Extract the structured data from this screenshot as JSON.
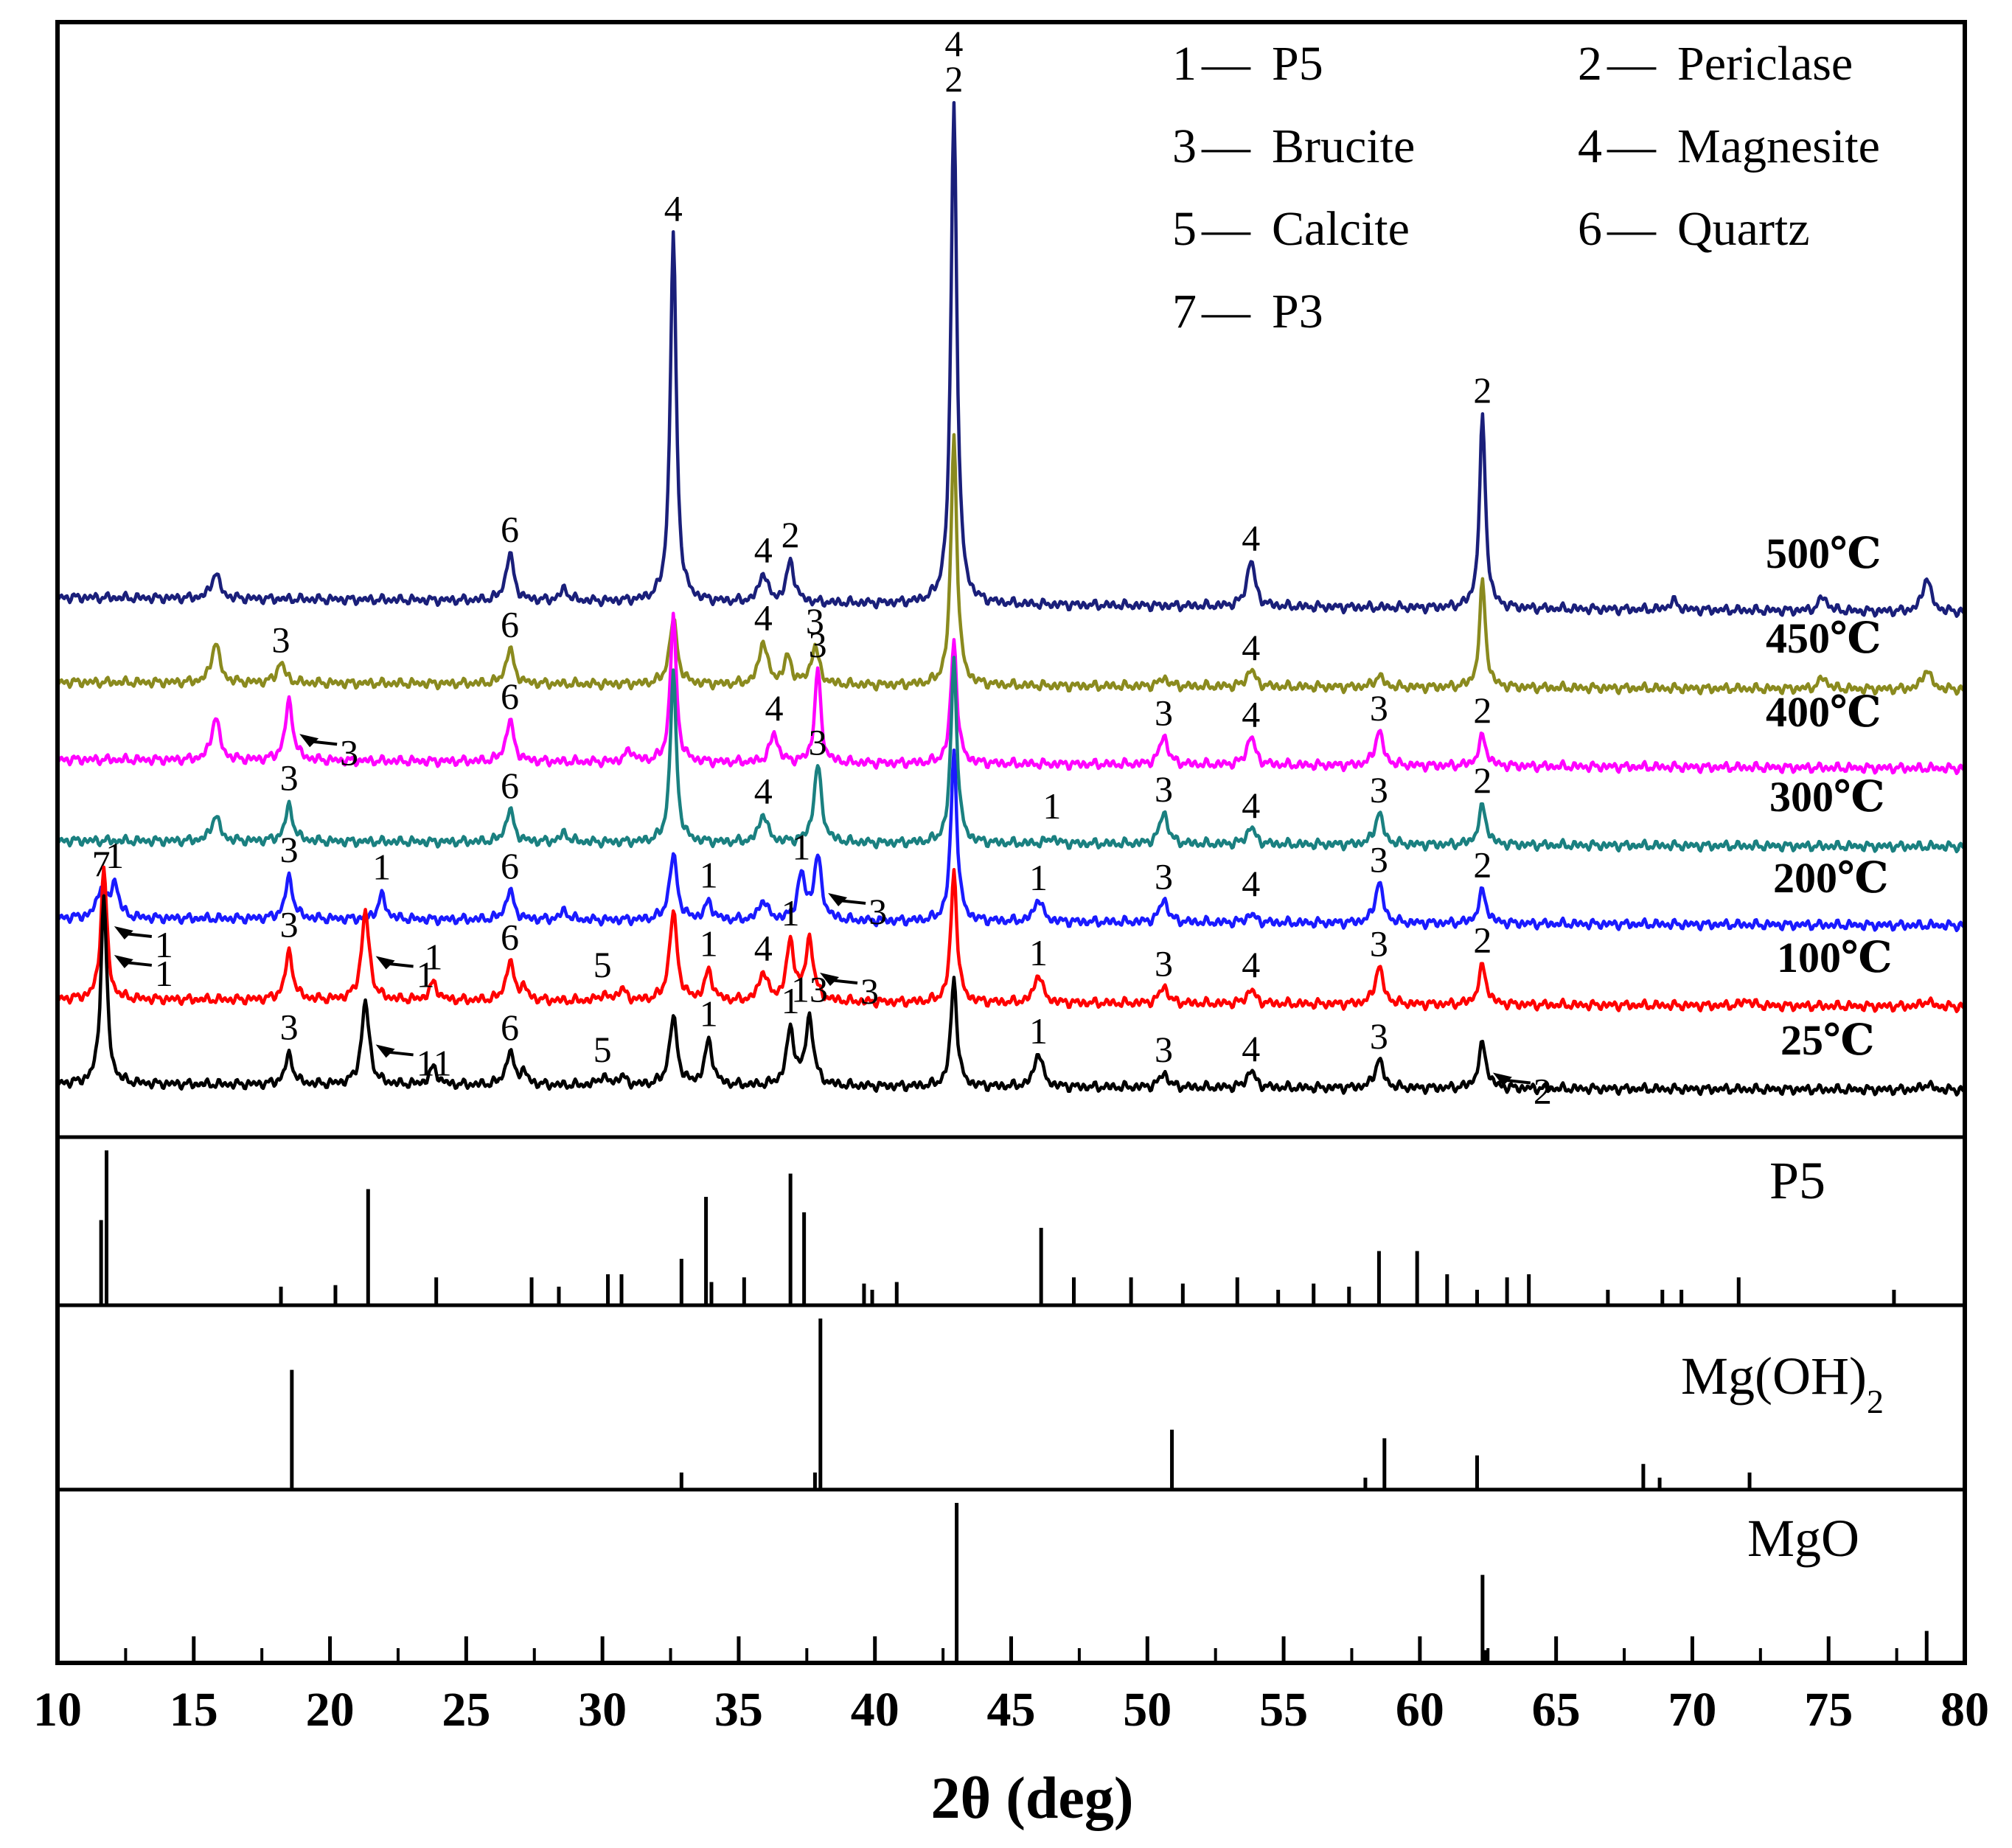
{
  "chart_data": {
    "type": "line",
    "title": "",
    "xlabel": "2θ (deg)",
    "ylabel": "",
    "xlim": [
      10,
      80
    ],
    "xticks": [
      10,
      15,
      20,
      25,
      30,
      35,
      40,
      45,
      50,
      55,
      60,
      65,
      70,
      75,
      80
    ],
    "grid": false,
    "legend": [
      {
        "num": "1",
        "name": "P5"
      },
      {
        "num": "2",
        "name": "Periclase"
      },
      {
        "num": "3",
        "name": "Brucite"
      },
      {
        "num": "4",
        "name": "Magnesite"
      },
      {
        "num": "5",
        "name": "Calcite"
      },
      {
        "num": "6",
        "name": "Quartz"
      },
      {
        "num": "7",
        "name": "P3"
      }
    ],
    "legend_sep": "—",
    "series": [
      {
        "name": "500℃",
        "color": "#1a1f7a",
        "baseline": 1.0,
        "peaks": [
          [
            15.8,
            0.9
          ],
          [
            26.6,
            1.6
          ],
          [
            28.6,
            0.4
          ],
          [
            32.6,
            12.5
          ],
          [
            35.9,
            1.0
          ],
          [
            36.9,
            1.4
          ],
          [
            42.9,
            17.0
          ],
          [
            53.8,
            1.6
          ],
          [
            62.3,
            6.5
          ],
          [
            69.3,
            0.3
          ],
          [
            74.8,
            0.5
          ],
          [
            78.6,
            1.2
          ]
        ],
        "labels": [
          {
            "x": 26.6,
            "t": "6"
          },
          {
            "x": 32.6,
            "t": "4"
          },
          {
            "x": 35.9,
            "t": "4"
          },
          {
            "x": 36.9,
            "t": "2"
          },
          {
            "x": 42.9,
            "t": "2"
          },
          {
            "x": 42.9,
            "t": "4"
          },
          {
            "x": 53.8,
            "t": "4"
          },
          {
            "x": 62.3,
            "t": "2"
          }
        ]
      },
      {
        "name": "450℃",
        "color": "#8a8a1e",
        "baseline": 1.0,
        "peaks": [
          [
            15.8,
            1.4
          ],
          [
            18.2,
            0.7
          ],
          [
            26.6,
            1.2
          ],
          [
            32.6,
            2.2
          ],
          [
            35.9,
            1.5
          ],
          [
            36.8,
            0.9
          ],
          [
            37.8,
            1.3
          ],
          [
            42.9,
            8.5
          ],
          [
            50.6,
            0.3
          ],
          [
            53.8,
            0.6
          ],
          [
            58.5,
            0.4
          ],
          [
            62.3,
            3.6
          ],
          [
            74.8,
            0.4
          ],
          [
            78.6,
            0.7
          ]
        ],
        "labels": [
          {
            "x": 18.2,
            "t": "3"
          },
          {
            "x": 26.6,
            "t": "6"
          },
          {
            "x": 35.9,
            "t": "4"
          },
          {
            "x": 37.8,
            "t": "3"
          },
          {
            "x": 53.8,
            "t": "4"
          }
        ]
      },
      {
        "name": "400℃",
        "color": "#ff00ff",
        "baseline": 1.0,
        "peaks": [
          [
            15.8,
            1.5
          ],
          [
            18.5,
            2.0
          ],
          [
            26.6,
            1.4
          ],
          [
            31.0,
            0.4
          ],
          [
            32.6,
            5.0
          ],
          [
            36.3,
            1.0
          ],
          [
            37.9,
            3.2
          ],
          [
            42.9,
            4.2
          ],
          [
            50.6,
            1.0
          ],
          [
            53.8,
            1.0
          ],
          [
            58.5,
            1.2
          ],
          [
            62.3,
            1.0
          ]
        ],
        "labels": [
          {
            "x": 18.5,
            "t": "3",
            "arrow": true
          },
          {
            "x": 26.6,
            "t": "6"
          },
          {
            "x": 36.3,
            "t": "4"
          },
          {
            "x": 37.9,
            "t": "3"
          },
          {
            "x": 50.6,
            "t": "3"
          },
          {
            "x": 53.8,
            "t": "4"
          },
          {
            "x": 58.5,
            "t": "3"
          },
          {
            "x": 62.3,
            "t": "2"
          }
        ]
      },
      {
        "name": "300℃",
        "color": "#1a8080",
        "baseline": 1.0,
        "peaks": [
          [
            15.8,
            0.9
          ],
          [
            18.5,
            1.2
          ],
          [
            26.6,
            1.1
          ],
          [
            28.6,
            0.3
          ],
          [
            32.6,
            5.8
          ],
          [
            35.9,
            1.0
          ],
          [
            37.9,
            2.6
          ],
          [
            42.9,
            6.3
          ],
          [
            46.5,
            0.2
          ],
          [
            50.6,
            1.1
          ],
          [
            53.8,
            0.6
          ],
          [
            58.5,
            1.1
          ],
          [
            62.3,
            1.3
          ]
        ],
        "labels": [
          {
            "x": 18.5,
            "t": "3"
          },
          {
            "x": 26.6,
            "t": "6"
          },
          {
            "x": 35.9,
            "t": "4"
          },
          {
            "x": 37.9,
            "t": "3"
          },
          {
            "x": 46.5,
            "t": "1"
          },
          {
            "x": 50.6,
            "t": "3"
          },
          {
            "x": 53.8,
            "t": "4"
          },
          {
            "x": 58.5,
            "t": "3"
          },
          {
            "x": 62.3,
            "t": "2"
          }
        ]
      },
      {
        "name": "200℃",
        "color": "#1a1aff",
        "baseline": 1.0,
        "peaks": [
          [
            11.6,
            1.0
          ],
          [
            12.1,
            1.2
          ],
          [
            18.5,
            1.4
          ],
          [
            21.9,
            0.8
          ],
          [
            26.6,
            1.0
          ],
          [
            28.6,
            0.3
          ],
          [
            32.6,
            2.2
          ],
          [
            33.9,
            0.6
          ],
          [
            35.9,
            0.7
          ],
          [
            37.3,
            1.5
          ],
          [
            37.9,
            2.1
          ],
          [
            42.9,
            5.8
          ],
          [
            46.0,
            0.8
          ],
          [
            50.6,
            0.8
          ],
          [
            53.8,
            0.3
          ],
          [
            58.5,
            1.4
          ],
          [
            62.3,
            1.1
          ]
        ],
        "labels": [
          {
            "x": 11.6,
            "t": "7"
          },
          {
            "x": 12.1,
            "t": "1"
          },
          {
            "x": 18.5,
            "t": "3"
          },
          {
            "x": 21.9,
            "t": "1"
          },
          {
            "x": 26.6,
            "t": "6"
          },
          {
            "x": 33.9,
            "t": "1"
          },
          {
            "x": 37.3,
            "t": "1"
          },
          {
            "x": 37.9,
            "t": "3",
            "arrow": true
          },
          {
            "x": 46.0,
            "t": "1"
          },
          {
            "x": 50.6,
            "t": "3"
          },
          {
            "x": 53.8,
            "t": "4"
          },
          {
            "x": 58.5,
            "t": "3"
          },
          {
            "x": 62.3,
            "t": "2"
          }
        ]
      },
      {
        "name": "100℃",
        "color": "#ff0000",
        "baseline": 1.0,
        "peaks": [
          [
            11.7,
            4.5
          ],
          [
            18.5,
            1.6
          ],
          [
            21.3,
            3.0
          ],
          [
            23.8,
            0.6
          ],
          [
            26.6,
            1.3
          ],
          [
            27.1,
            0.4
          ],
          [
            30.0,
            0.2
          ],
          [
            30.7,
            0.4
          ],
          [
            32.6,
            3.0
          ],
          [
            33.9,
            1.0
          ],
          [
            35.9,
            1.0
          ],
          [
            36.9,
            2.0
          ],
          [
            37.6,
            2.1
          ],
          [
            42.9,
            4.5
          ],
          [
            46.0,
            1.0
          ],
          [
            50.6,
            0.6
          ],
          [
            53.8,
            0.5
          ],
          [
            58.5,
            1.3
          ],
          [
            62.3,
            1.3
          ],
          [
            72.0,
            0.2
          ],
          [
            78.6,
            0.2
          ]
        ],
        "labels": [
          {
            "x": 11.7,
            "t": "1",
            "arrow": true
          },
          {
            "x": 18.5,
            "t": "3"
          },
          {
            "x": 21.3,
            "t": "1",
            "arrow": true
          },
          {
            "x": 23.8,
            "t": "1"
          },
          {
            "x": 26.6,
            "t": "6"
          },
          {
            "x": 30.0,
            "t": "5"
          },
          {
            "x": 33.9,
            "t": "1"
          },
          {
            "x": 35.9,
            "t": "4"
          },
          {
            "x": 36.9,
            "t": "1"
          },
          {
            "x": 37.6,
            "t": "3",
            "arrow": true
          },
          {
            "x": 46.0,
            "t": "1"
          },
          {
            "x": 50.6,
            "t": "3"
          },
          {
            "x": 53.8,
            "t": "4"
          },
          {
            "x": 58.5,
            "t": "3"
          },
          {
            "x": 62.3,
            "t": "2"
          }
        ]
      },
      {
        "name": "25℃",
        "color": "#000000",
        "baseline": 1.0,
        "peaks": [
          [
            11.7,
            6.4
          ],
          [
            18.5,
            1.0
          ],
          [
            21.3,
            2.8
          ],
          [
            23.8,
            0.6
          ],
          [
            26.6,
            1.1
          ],
          [
            27.1,
            0.4
          ],
          [
            30.0,
            0.3
          ],
          [
            30.7,
            0.3
          ],
          [
            32.6,
            2.3
          ],
          [
            33.9,
            1.5
          ],
          [
            36.9,
            1.9
          ],
          [
            37.6,
            2.3
          ],
          [
            42.9,
            3.7
          ],
          [
            46.0,
            1.2
          ],
          [
            50.6,
            0.5
          ],
          [
            53.8,
            0.6
          ],
          [
            58.5,
            1.0
          ],
          [
            62.3,
            1.5
          ],
          [
            78.6,
            0.2
          ]
        ],
        "labels": [
          {
            "x": 11.7,
            "t": "1",
            "arrow": true
          },
          {
            "x": 18.5,
            "t": "3"
          },
          {
            "x": 21.3,
            "t": "11",
            "arrow": true
          },
          {
            "x": 26.6,
            "t": "6"
          },
          {
            "x": 30.0,
            "t": "5"
          },
          {
            "x": 33.9,
            "t": "1"
          },
          {
            "x": 36.9,
            "t": "1"
          },
          {
            "x": 37.6,
            "t": "13"
          },
          {
            "x": 46.0,
            "t": "1"
          },
          {
            "x": 50.6,
            "t": "3"
          },
          {
            "x": 53.8,
            "t": "4"
          },
          {
            "x": 58.5,
            "t": "3"
          },
          {
            "x": 62.3,
            "t": "2",
            "arrow": true
          }
        ]
      }
    ],
    "reference_patterns": [
      {
        "name": "P5",
        "name_main": "P5",
        "name_sub": "",
        "sticks": [
          [
            11.6,
            0.55
          ],
          [
            11.8,
            1.0
          ],
          [
            18.2,
            0.12
          ],
          [
            20.2,
            0.13
          ],
          [
            21.4,
            0.75
          ],
          [
            23.9,
            0.18
          ],
          [
            27.4,
            0.18
          ],
          [
            28.4,
            0.12
          ],
          [
            30.2,
            0.2
          ],
          [
            30.7,
            0.2
          ],
          [
            32.9,
            0.3
          ],
          [
            33.8,
            0.7
          ],
          [
            34.0,
            0.15
          ],
          [
            35.2,
            0.18
          ],
          [
            36.9,
            0.85
          ],
          [
            37.4,
            0.6
          ],
          [
            39.6,
            0.14
          ],
          [
            39.9,
            0.1
          ],
          [
            40.8,
            0.15
          ],
          [
            46.1,
            0.5
          ],
          [
            47.3,
            0.18
          ],
          [
            49.4,
            0.18
          ],
          [
            51.3,
            0.14
          ],
          [
            53.3,
            0.18
          ],
          [
            54.8,
            0.1
          ],
          [
            56.1,
            0.14
          ],
          [
            57.4,
            0.12
          ],
          [
            58.5,
            0.35
          ],
          [
            59.9,
            0.35
          ],
          [
            61.0,
            0.2
          ],
          [
            62.1,
            0.1
          ],
          [
            63.2,
            0.18
          ],
          [
            64.0,
            0.2
          ],
          [
            66.9,
            0.1
          ],
          [
            68.9,
            0.1
          ],
          [
            69.6,
            0.1
          ],
          [
            71.7,
            0.18
          ],
          [
            77.4,
            0.1
          ]
        ]
      },
      {
        "name": "Mg(OH)2",
        "name_main": "Mg(OH)",
        "name_sub": "2",
        "sticks": [
          [
            18.6,
            0.7
          ],
          [
            32.9,
            0.1
          ],
          [
            37.8,
            0.1
          ],
          [
            38.0,
            1.0
          ],
          [
            50.9,
            0.35
          ],
          [
            58.0,
            0.07
          ],
          [
            58.7,
            0.3
          ],
          [
            62.1,
            0.2
          ],
          [
            68.2,
            0.15
          ],
          [
            68.8,
            0.07
          ],
          [
            72.1,
            0.1
          ]
        ]
      },
      {
        "name": "MgO",
        "name_main": "MgO",
        "name_sub": "",
        "sticks": [
          [
            43.0,
            1.0
          ],
          [
            62.3,
            0.55
          ],
          [
            62.4,
            0.08
          ],
          [
            78.6,
            0.2
          ]
        ]
      }
    ]
  }
}
